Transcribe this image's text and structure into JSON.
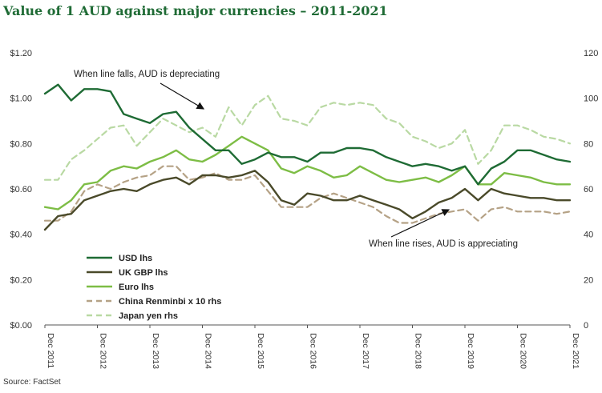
{
  "title": "Value of 1 AUD against major currencies – 2011-2021",
  "source": "Source: FactSet",
  "chart_data": {
    "type": "line",
    "x": [
      "Dec 2011",
      "Mar 2012",
      "Jun 2012",
      "Sep 2012",
      "Dec 2012",
      "Mar 2013",
      "Jun 2013",
      "Sep 2013",
      "Dec 2013",
      "Mar 2014",
      "Jun 2014",
      "Sep 2014",
      "Dec 2014",
      "Mar 2015",
      "Jun 2015",
      "Sep 2015",
      "Dec 2015",
      "Mar 2016",
      "Jun 2016",
      "Sep 2016",
      "Dec 2016",
      "Mar 2017",
      "Jun 2017",
      "Sep 2017",
      "Dec 2017",
      "Mar 2018",
      "Jun 2018",
      "Sep 2018",
      "Dec 2018",
      "Mar 2019",
      "Jun 2019",
      "Sep 2019",
      "Dec 2019",
      "Mar 2020",
      "Jun 2020",
      "Sep 2020",
      "Dec 2020",
      "Mar 2021",
      "Jun 2021",
      "Sep 2021",
      "Dec 2021"
    ],
    "x_ticks": [
      "Dec 2011",
      "Dec 2012",
      "Dec 2013",
      "Dec 2014",
      "Dec 2015",
      "Dec 2016",
      "Dec 2017",
      "Dec 2018",
      "Dec 2019",
      "Dec 2020",
      "Dec 2021"
    ],
    "y_left": {
      "min": 0,
      "max": 1.2,
      "ticks": [
        "$0.00",
        "$0.20",
        "$0.40",
        "$0.60",
        "$0.80",
        "$1.00",
        "$1.20"
      ]
    },
    "y_right": {
      "min": 0,
      "max": 120,
      "ticks": [
        "0",
        "20",
        "40",
        "60",
        "80",
        "100",
        "120"
      ]
    },
    "series": [
      {
        "name": "USD lhs",
        "axis": "left",
        "color": "#1e6b34",
        "dash": "solid",
        "values": [
          1.02,
          1.06,
          0.99,
          1.04,
          1.04,
          1.03,
          0.93,
          0.91,
          0.89,
          0.93,
          0.94,
          0.87,
          0.82,
          0.77,
          0.77,
          0.71,
          0.73,
          0.76,
          0.74,
          0.74,
          0.72,
          0.76,
          0.76,
          0.78,
          0.78,
          0.77,
          0.74,
          0.72,
          0.7,
          0.71,
          0.7,
          0.68,
          0.7,
          0.62,
          0.69,
          0.72,
          0.77,
          0.77,
          0.75,
          0.73,
          0.72
        ]
      },
      {
        "name": "UK GBP lhs",
        "axis": "left",
        "color": "#4a4a2a",
        "dash": "solid",
        "values": [
          0.42,
          0.48,
          0.49,
          0.55,
          0.57,
          0.59,
          0.6,
          0.59,
          0.62,
          0.64,
          0.65,
          0.62,
          0.66,
          0.66,
          0.65,
          0.66,
          0.68,
          0.63,
          0.55,
          0.53,
          0.58,
          0.57,
          0.55,
          0.55,
          0.57,
          0.55,
          0.53,
          0.51,
          0.47,
          0.5,
          0.54,
          0.56,
          0.6,
          0.55,
          0.6,
          0.58,
          0.57,
          0.56,
          0.56,
          0.55,
          0.55
        ]
      },
      {
        "name": "Euro lhs",
        "axis": "left",
        "color": "#7dbd45",
        "dash": "solid",
        "values": [
          0.52,
          0.51,
          0.55,
          0.62,
          0.63,
          0.68,
          0.7,
          0.69,
          0.72,
          0.74,
          0.77,
          0.73,
          0.72,
          0.75,
          0.79,
          0.83,
          0.8,
          0.77,
          0.69,
          0.67,
          0.7,
          0.68,
          0.65,
          0.66,
          0.7,
          0.67,
          0.64,
          0.63,
          0.64,
          0.65,
          0.63,
          0.66,
          0.7,
          0.62,
          0.62,
          0.67,
          0.66,
          0.65,
          0.63,
          0.62,
          0.62
        ]
      },
      {
        "name": "China Renminbi x 10 rhs",
        "axis": "right",
        "color": "#b5a286",
        "dash": "dashed",
        "values": [
          46,
          46,
          50,
          59,
          62,
          60,
          63,
          65,
          66,
          70,
          70,
          64,
          65,
          67,
          64,
          64,
          66,
          59,
          52,
          52,
          52,
          56,
          58,
          56,
          54,
          52,
          48,
          45,
          45,
          47,
          49,
          50,
          51,
          46,
          51,
          52,
          50,
          50,
          50,
          49,
          50
        ]
      },
      {
        "name": "Japan yen rhs",
        "axis": "right",
        "color": "#b9d9a3",
        "dash": "dashed",
        "values": [
          64,
          64,
          73,
          77,
          82,
          87,
          88,
          79,
          85,
          91,
          88,
          85,
          87,
          83,
          96,
          88,
          97,
          101,
          91,
          90,
          88,
          96,
          98,
          97,
          98,
          97,
          91,
          89,
          83,
          81,
          78,
          80,
          86,
          71,
          77,
          88,
          88,
          86,
          83,
          82,
          80
        ]
      }
    ],
    "annotations": [
      {
        "text": "When line falls, AUD is depreciating"
      },
      {
        "text": "When line rises, AUD is appreciating"
      }
    ],
    "legend_placement": "bottom-left"
  }
}
